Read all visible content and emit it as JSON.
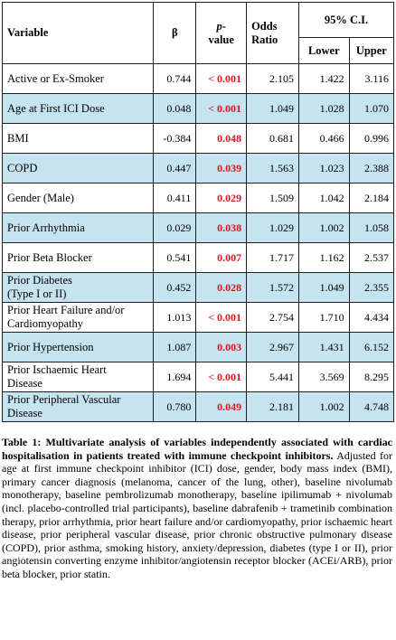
{
  "table": {
    "headers": {
      "variable": "Variable",
      "beta": "β",
      "p_value_line1": "p-",
      "p_value_line2": "value",
      "odds_ratio_line1": "Odds",
      "odds_ratio_line2": "Ratio",
      "ci": "95% C.I.",
      "lower": "Lower",
      "upper": "Upper"
    },
    "rows": [
      {
        "variable": "Active or Ex-Smoker",
        "beta": "0.744",
        "p_value": "< 0.001",
        "odds_ratio": "2.105",
        "lower": "1.422",
        "upper": "3.116"
      },
      {
        "variable": "Age at First ICI Dose",
        "beta": "0.048",
        "p_value": "< 0.001",
        "odds_ratio": "1.049",
        "lower": "1.028",
        "upper": "1.070"
      },
      {
        "variable": "BMI",
        "beta": "-0.384",
        "p_value": "0.048",
        "odds_ratio": "0.681",
        "lower": "0.466",
        "upper": "0.996"
      },
      {
        "variable": "COPD",
        "beta": "0.447",
        "p_value": "0.039",
        "odds_ratio": "1.563",
        "lower": "1.023",
        "upper": "2.388"
      },
      {
        "variable": "Gender (Male)",
        "beta": "0.411",
        "p_value": "0.029",
        "odds_ratio": "1.509",
        "lower": "1.042",
        "upper": "2.184"
      },
      {
        "variable": "Prior Arrhythmia",
        "beta": "0.029",
        "p_value": "0.038",
        "odds_ratio": "1.029",
        "lower": "1.002",
        "upper": "1.058"
      },
      {
        "variable": "Prior Beta Blocker",
        "beta": "0.541",
        "p_value": "0.007",
        "odds_ratio": "1.717",
        "lower": "1.162",
        "upper": "2.537"
      },
      {
        "variable_line1": "Prior Diabetes",
        "variable_line2": "(Type I or II)",
        "beta": "0.452",
        "p_value": "0.028",
        "odds_ratio": "1.572",
        "lower": "1.049",
        "upper": "2.355"
      },
      {
        "variable_line1": "Prior Heart Failure and/or",
        "variable_line2": "Cardiomyopathy",
        "beta": "1.013",
        "p_value": "< 0.001",
        "odds_ratio": "2.754",
        "lower": "1.710",
        "upper": "4.434"
      },
      {
        "variable": "Prior Hypertension",
        "beta": "1.087",
        "p_value": "0.003",
        "odds_ratio": "2.967",
        "lower": "1.431",
        "upper": "6.152"
      },
      {
        "variable_line1": "Prior Ischaemic Heart",
        "variable_line2": "Disease",
        "beta": "1.694",
        "p_value": "< 0.001",
        "odds_ratio": "5.441",
        "lower": "3.569",
        "upper": "8.295"
      },
      {
        "variable_line1": "Prior Peripheral Vascular",
        "variable_line2": "Disease",
        "beta": "0.780",
        "p_value": "0.049",
        "odds_ratio": "2.181",
        "lower": "1.002",
        "upper": "4.748"
      }
    ]
  },
  "caption": {
    "label": "Table 1",
    "bold_text": ": Multivariate analysis of variables independently associated with cardiac hospitalisation in patients treated with immune checkpoint inhibitors.",
    "body": " Adjusted for age at first immune checkpoint inhibitor (ICI) dose, gender, body mass index (BMI), primary cancer diagnosis (melanoma, cancer of the lung, other), baseline nivolumab monotherapy, baseline pembrolizumab monotherapy, baseline ipilimumab + nivolumab (incl. placebo-controlled trial participants), baseline dabrafenib + trametinib combination therapy, prior arrhythmia, prior heart failure and/or cardiomyopathy, prior ischaemic heart disease, prior peripheral vascular disease, prior chronic obstructive pulmonary disease (COPD), prior asthma, smoking history, anxiety/depression, diabetes (type I or II), prior angiotensin converting enzyme inhibitor/angiotensin receptor blocker (ACEi/ARB), prior beta blocker, prior statin."
  },
  "colors": {
    "alt_row_bg": "#c6e3f0",
    "significant_p": "#e3101e",
    "border": "#1f1f1f"
  }
}
